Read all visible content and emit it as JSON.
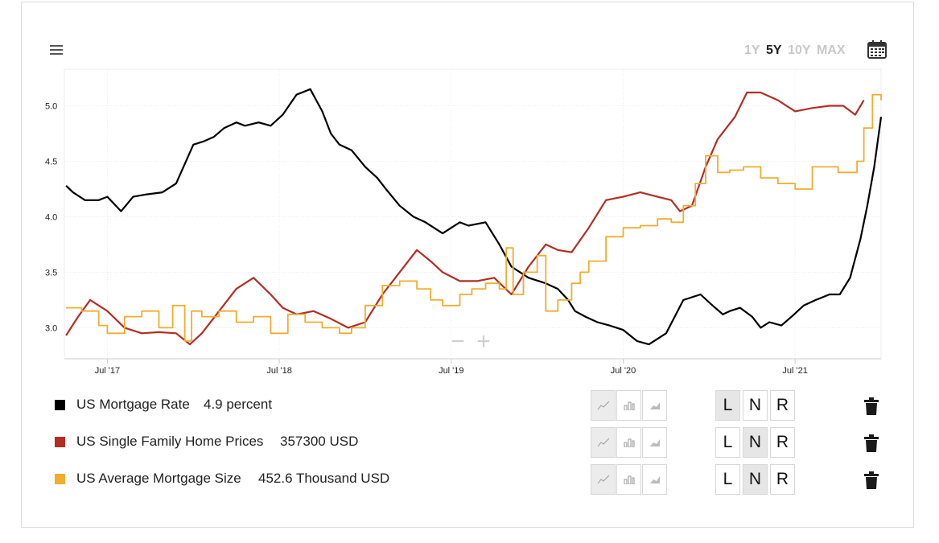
{
  "toolbar": {
    "ranges": [
      "1Y",
      "5Y",
      "10Y",
      "MAX"
    ],
    "active_range": "5Y",
    "zoom_out": "−",
    "zoom_in": "+"
  },
  "colors": {
    "mortgage_rate": "#000000",
    "home_prices": "#b22e24",
    "mortgage_size": "#f0ad2e",
    "grid": "#ececec",
    "axis": "#cccccc"
  },
  "legend": [
    {
      "name": "US Mortgage Rate",
      "value": "4.9 percent",
      "color": "#000000",
      "selected_axis": "L"
    },
    {
      "name": "US Single Family Home Prices",
      "value": "357300 USD",
      "color": "#b22e24",
      "selected_axis": "N"
    },
    {
      "name": "US Average Mortgage Size",
      "value": "452.6 Thousand USD",
      "color": "#f0ad2e",
      "selected_axis": "N"
    }
  ],
  "axis_buttons": [
    "L",
    "N",
    "R"
  ],
  "chart_data": {
    "type": "line",
    "title": "",
    "xlabel": "",
    "ylabel": "",
    "x_tick_labels": [
      "Jul '17",
      "Jul '18",
      "Jul '19",
      "Jul '20",
      "Jul '21"
    ],
    "x_tick_dates": [
      2017.5,
      2018.5,
      2019.5,
      2020.5,
      2021.5
    ],
    "xlim": [
      2017.25,
      2022.0
    ],
    "y_tick_labels": [
      "3.0",
      "3.5",
      "4.0",
      "4.5",
      "5.0"
    ],
    "y_tick_values": [
      3.0,
      3.5,
      4.0,
      4.5,
      5.0
    ],
    "ylim": [
      2.72,
      5.33
    ],
    "grid": true,
    "series": [
      {
        "name": "US Mortgage Rate",
        "color": "#000000",
        "x": [
          2017.26,
          2017.3,
          2017.37,
          2017.45,
          2017.5,
          2017.58,
          2017.65,
          2017.72,
          2017.82,
          2017.9,
          2018.0,
          2018.06,
          2018.12,
          2018.18,
          2018.25,
          2018.3,
          2018.38,
          2018.45,
          2018.52,
          2018.6,
          2018.68,
          2018.75,
          2018.8,
          2018.85,
          2018.92,
          2019.0,
          2019.07,
          2019.12,
          2019.2,
          2019.28,
          2019.35,
          2019.45,
          2019.55,
          2019.6,
          2019.7,
          2019.78,
          2019.85,
          2019.95,
          2020.05,
          2020.12,
          2020.18,
          2020.22,
          2020.28,
          2020.35,
          2020.42,
          2020.5,
          2020.58,
          2020.65,
          2020.75,
          2020.85,
          2020.95,
          2021.02,
          2021.08,
          2021.12,
          2021.18,
          2021.25,
          2021.3,
          2021.35,
          2021.42,
          2021.48,
          2021.55,
          2021.62,
          2021.7,
          2021.76,
          2021.82,
          2021.88,
          2021.92,
          2021.96,
          2022.0
        ],
        "values": [
          4.28,
          4.22,
          4.15,
          4.15,
          4.18,
          4.05,
          4.18,
          4.2,
          4.22,
          4.3,
          4.65,
          4.68,
          4.72,
          4.8,
          4.85,
          4.82,
          4.85,
          4.82,
          4.92,
          5.1,
          5.15,
          4.95,
          4.75,
          4.65,
          4.6,
          4.45,
          4.35,
          4.25,
          4.1,
          4.0,
          3.95,
          3.85,
          3.95,
          3.92,
          3.95,
          3.75,
          3.55,
          3.45,
          3.4,
          3.35,
          3.25,
          3.15,
          3.1,
          3.05,
          3.02,
          2.98,
          2.88,
          2.85,
          2.95,
          3.25,
          3.3,
          3.2,
          3.12,
          3.15,
          3.18,
          3.1,
          3.0,
          3.05,
          3.02,
          3.1,
          3.2,
          3.25,
          3.3,
          3.3,
          3.45,
          3.8,
          4.1,
          4.45,
          4.9
        ]
      },
      {
        "name": "US Single Family Home Prices",
        "color": "#b22e24",
        "x": [
          2017.26,
          2017.33,
          2017.4,
          2017.5,
          2017.6,
          2017.7,
          2017.8,
          2017.9,
          2017.98,
          2018.05,
          2018.15,
          2018.25,
          2018.35,
          2018.45,
          2018.52,
          2018.6,
          2018.7,
          2018.8,
          2018.9,
          2019.0,
          2019.1,
          2019.2,
          2019.3,
          2019.38,
          2019.45,
          2019.55,
          2019.65,
          2019.75,
          2019.85,
          2019.95,
          2020.05,
          2020.12,
          2020.2,
          2020.3,
          2020.4,
          2020.5,
          2020.6,
          2020.7,
          2020.78,
          2020.83,
          2020.9,
          2020.98,
          2021.05,
          2021.15,
          2021.22,
          2021.3,
          2021.4,
          2021.5,
          2021.6,
          2021.7,
          2021.78,
          2021.85,
          2021.9
        ],
        "values": [
          2.93,
          3.1,
          3.25,
          3.15,
          3.0,
          2.95,
          2.96,
          2.95,
          2.85,
          2.95,
          3.15,
          3.35,
          3.45,
          3.3,
          3.18,
          3.12,
          3.15,
          3.08,
          3.0,
          3.05,
          3.3,
          3.5,
          3.7,
          3.6,
          3.5,
          3.42,
          3.42,
          3.45,
          3.3,
          3.55,
          3.75,
          3.7,
          3.68,
          3.9,
          4.15,
          4.18,
          4.22,
          4.18,
          4.15,
          4.05,
          4.1,
          4.45,
          4.7,
          4.9,
          5.12,
          5.12,
          5.05,
          4.95,
          4.98,
          5.0,
          5.0,
          4.92,
          5.05
        ]
      },
      {
        "name": "US Average Mortgage Size",
        "color": "#f0ad2e",
        "x": [
          2017.26,
          2017.35,
          2017.45,
          2017.5,
          2017.6,
          2017.7,
          2017.8,
          2017.88,
          2017.95,
          2017.99,
          2018.05,
          2018.15,
          2018.25,
          2018.35,
          2018.45,
          2018.55,
          2018.65,
          2018.75,
          2018.85,
          2018.92,
          2019.0,
          2019.1,
          2019.2,
          2019.3,
          2019.38,
          2019.45,
          2019.55,
          2019.62,
          2019.7,
          2019.78,
          2019.82,
          2019.86,
          2019.92,
          2020.0,
          2020.05,
          2020.12,
          2020.2,
          2020.25,
          2020.3,
          2020.4,
          2020.5,
          2020.6,
          2020.7,
          2020.78,
          2020.85,
          2020.92,
          2020.98,
          2021.05,
          2021.12,
          2021.2,
          2021.3,
          2021.4,
          2021.5,
          2021.6,
          2021.68,
          2021.75,
          2021.8,
          2021.86,
          2021.9,
          2021.95,
          2022.0
        ],
        "values": [
          3.18,
          3.15,
          3.02,
          2.95,
          3.1,
          3.15,
          3.0,
          3.2,
          2.88,
          3.15,
          3.1,
          3.15,
          3.05,
          3.1,
          2.95,
          3.12,
          3.05,
          3.0,
          2.95,
          3.0,
          3.2,
          3.38,
          3.42,
          3.35,
          3.25,
          3.2,
          3.3,
          3.35,
          3.4,
          3.35,
          3.72,
          3.3,
          3.5,
          3.65,
          3.15,
          3.25,
          3.4,
          3.5,
          3.6,
          3.82,
          3.9,
          3.92,
          3.98,
          3.95,
          4.1,
          4.3,
          4.55,
          4.4,
          4.42,
          4.45,
          4.35,
          4.3,
          4.25,
          4.45,
          4.45,
          4.4,
          4.4,
          4.5,
          4.8,
          5.1,
          5.05
        ]
      }
    ]
  }
}
